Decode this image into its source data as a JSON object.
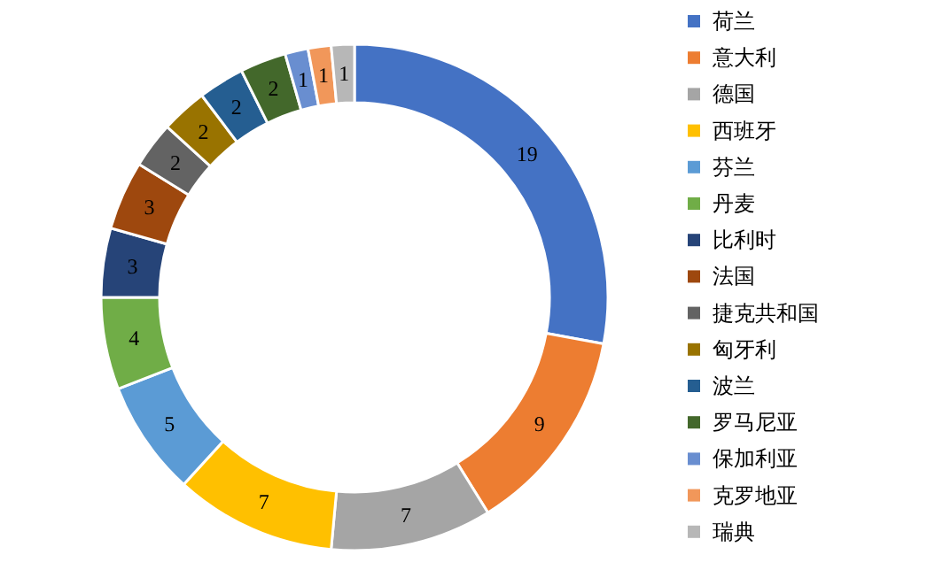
{
  "chart_data": {
    "type": "donut",
    "categories": [
      "荷兰",
      "意大利",
      "德国",
      "西班牙",
      "芬兰",
      "丹麦",
      "比利时",
      "法国",
      "捷克共和国",
      "匈牙利",
      "波兰",
      "罗马尼亚",
      "保加利亚",
      "克罗地亚",
      "瑞典"
    ],
    "values": [
      19,
      9,
      7,
      7,
      5,
      4,
      3,
      3,
      2,
      2,
      2,
      2,
      1,
      1,
      1
    ],
    "colors": [
      "#4472c4",
      "#ed7d31",
      "#a5a5a5",
      "#ffc000",
      "#5b9bd5",
      "#70ad47",
      "#264478",
      "#9e480e",
      "#636363",
      "#997300",
      "#255e91",
      "#43682b",
      "#698ed0",
      "#f1975a",
      "#b7b7b7"
    ],
    "data_labels": true,
    "legend": "right"
  }
}
